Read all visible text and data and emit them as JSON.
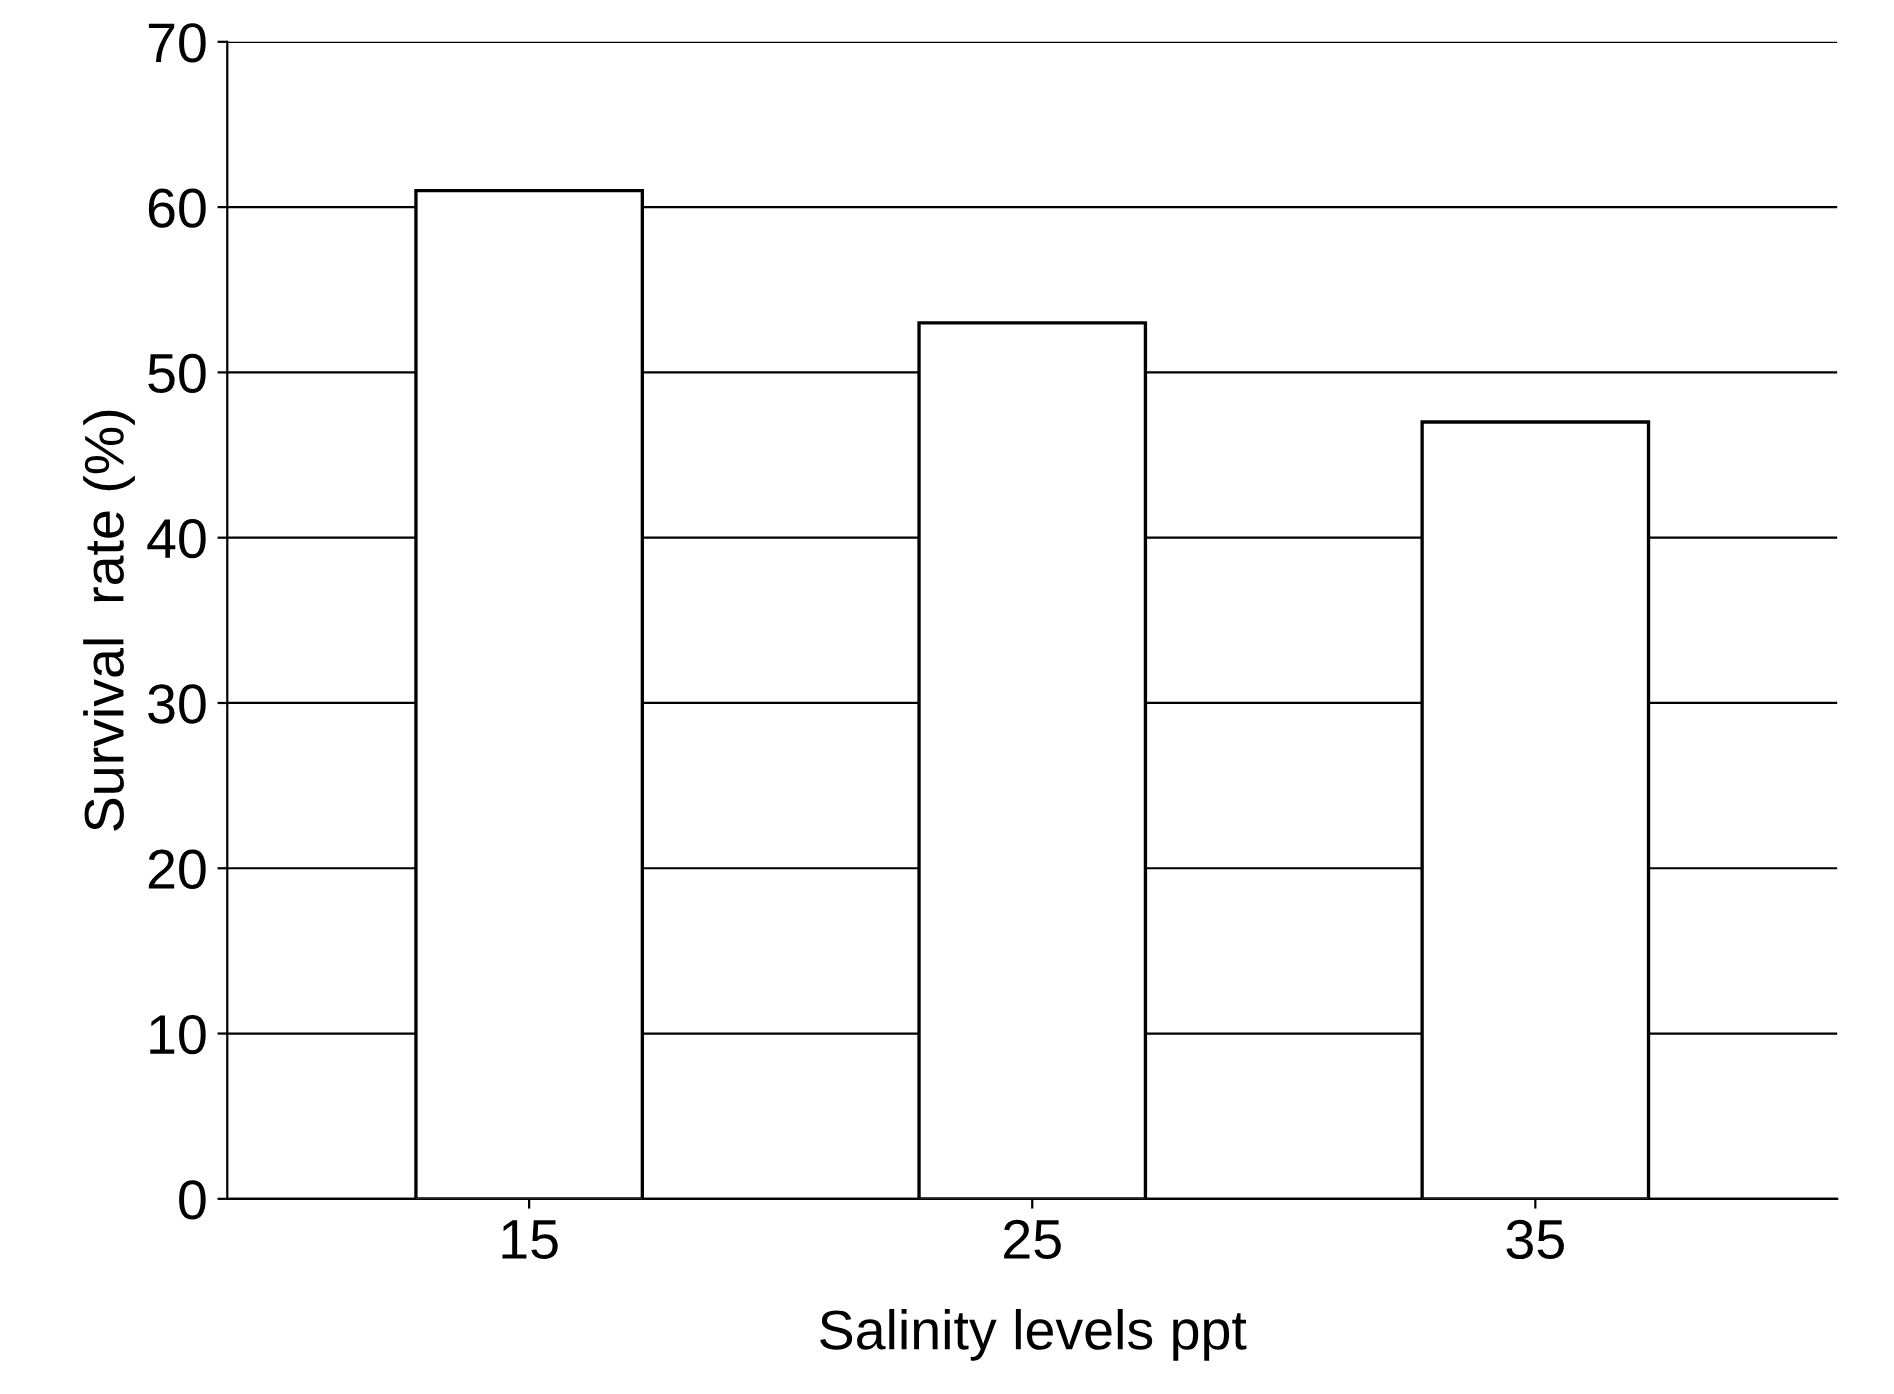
{
  "chart_data": {
    "type": "bar",
    "xlabel": "Salinity levels ppt",
    "ylabel": "Survival  rate (%)",
    "categories": [
      "15",
      "25",
      "35"
    ],
    "values": [
      61,
      53,
      47
    ],
    "color": "#ffffff",
    "ylim": [
      0,
      70
    ],
    "yticks": [
      0,
      10,
      20,
      30,
      40,
      50,
      60,
      70
    ],
    "grid": "y",
    "legend": false
  }
}
